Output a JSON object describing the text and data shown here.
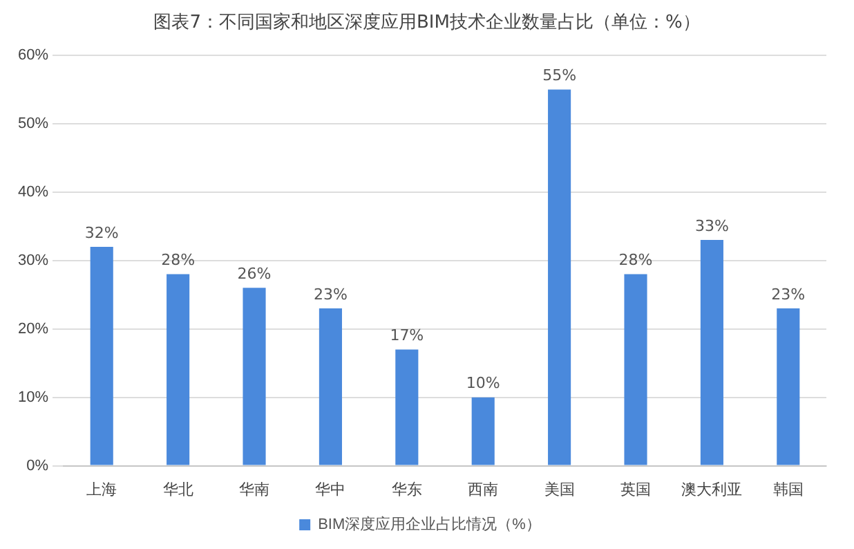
{
  "chart_data": {
    "type": "bar",
    "title": "图表7：不同国家和地区深度应用BIM技术企业数量占比（单位：%）",
    "categories": [
      "上海",
      "华北",
      "华南",
      "华中",
      "华东",
      "西南",
      "美国",
      "英国",
      "澳大利亚",
      "韩国"
    ],
    "series": [
      {
        "name": "BIM深度应用企业占比情况（%）",
        "color": "#4a89dc",
        "values": [
          32,
          28,
          26,
          23,
          17,
          10,
          55,
          28,
          33,
          23
        ],
        "value_labels": [
          "32%",
          "28%",
          "26%",
          "23%",
          "17%",
          "10%",
          "55%",
          "28%",
          "33%",
          "23%"
        ]
      }
    ],
    "ylim": [
      0,
      60
    ],
    "yticks": [
      {
        "value": 0,
        "label": "0%"
      },
      {
        "value": 10,
        "label": "10%"
      },
      {
        "value": 20,
        "label": "20%"
      },
      {
        "value": 30,
        "label": "30%"
      },
      {
        "value": 40,
        "label": "40%"
      },
      {
        "value": 50,
        "label": "50%"
      },
      {
        "value": 60,
        "label": "60%"
      }
    ],
    "grid": "y",
    "legend": "bottom"
  }
}
